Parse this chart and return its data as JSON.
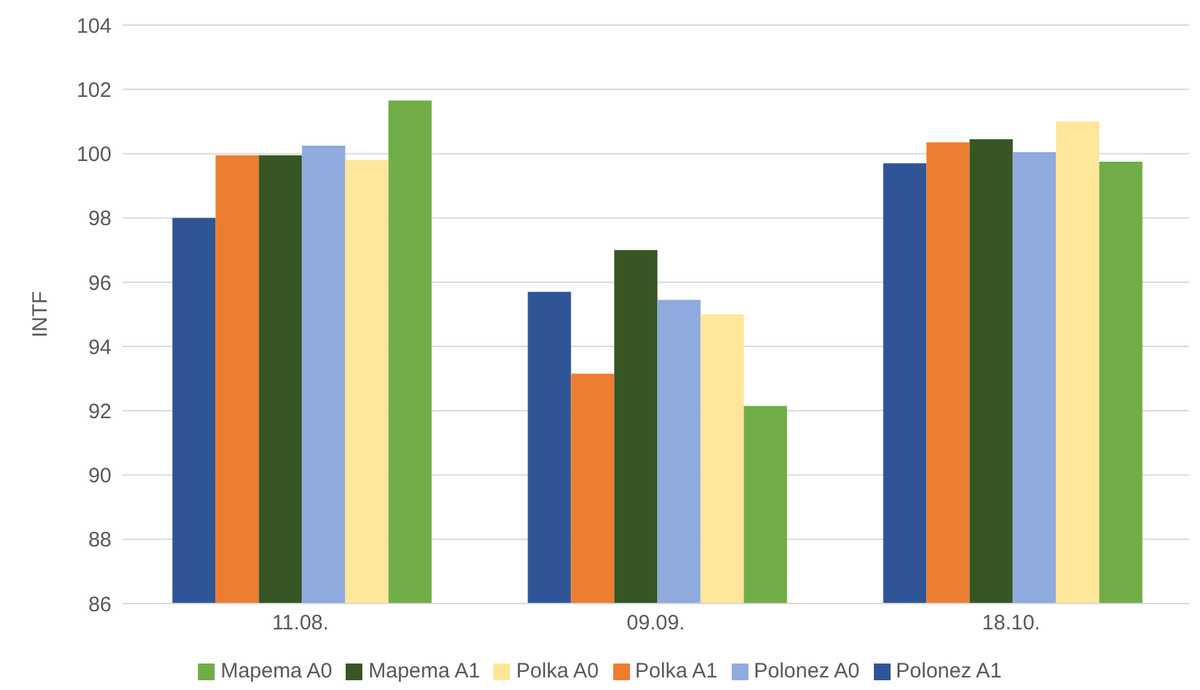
{
  "chart_data": {
    "type": "bar",
    "ylabel": "INTF",
    "categories": [
      "11.08.",
      "09.09.",
      "18.10."
    ],
    "series": [
      {
        "name": "Polonez A1",
        "color": "#2f5597",
        "values": [
          98.0,
          95.7,
          99.7
        ]
      },
      {
        "name": "Polka A1",
        "color": "#ed7d31",
        "values": [
          99.95,
          93.15,
          100.35
        ]
      },
      {
        "name": "Mapema A1",
        "color": "#375623",
        "values": [
          99.95,
          97.0,
          100.45
        ]
      },
      {
        "name": "Polonez A0",
        "color": "#8faadc",
        "values": [
          100.25,
          95.45,
          100.05
        ]
      },
      {
        "name": "Polka A0",
        "color": "#ffe699",
        "values": [
          99.8,
          95.0,
          101.0
        ]
      },
      {
        "name": "Mapema A0",
        "color": "#70ad47",
        "values": [
          101.65,
          92.15,
          99.75
        ]
      }
    ],
    "ylim": [
      86,
      104
    ],
    "yticks": [
      86,
      88,
      90,
      92,
      94,
      96,
      98,
      100,
      102,
      104
    ],
    "grid": "y",
    "legend": "bottom"
  }
}
